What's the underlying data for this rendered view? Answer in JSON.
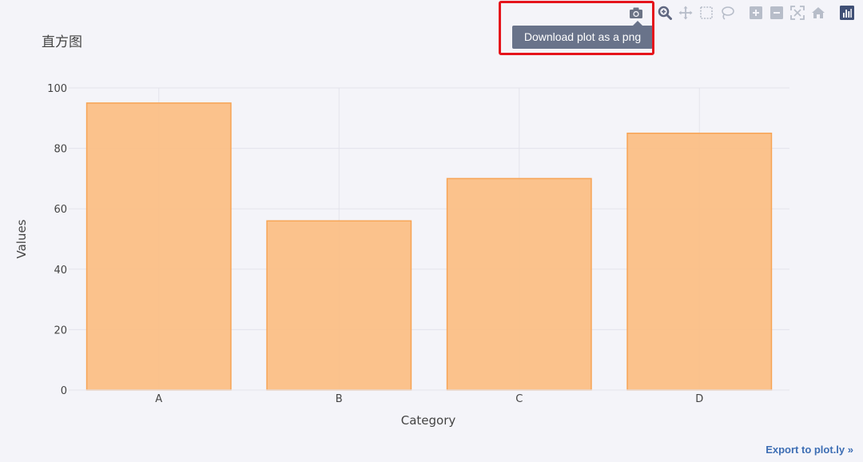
{
  "title": "直方图",
  "tooltip": "Download plot as a png",
  "export_link": "Export to plot.ly »",
  "modebar": {
    "buttons": [
      {
        "name": "camera-icon",
        "label": "Download plot as a png"
      },
      {
        "name": "zoom-icon",
        "label": "Zoom"
      },
      {
        "name": "pan-icon",
        "label": "Pan"
      },
      {
        "name": "box-select-icon",
        "label": "Box Select"
      },
      {
        "name": "lasso-select-icon",
        "label": "Lasso Select"
      },
      {
        "name": "zoom-in-icon",
        "label": "Zoom in"
      },
      {
        "name": "zoom-out-icon",
        "label": "Zoom out"
      },
      {
        "name": "autoscale-icon",
        "label": "Autoscale"
      },
      {
        "name": "reset-axes-icon",
        "label": "Reset axes"
      },
      {
        "name": "plotly-logo-icon",
        "label": "Produced with Plotly"
      }
    ],
    "icon_color": "#b7bdc9",
    "active_icon_color": "#6b7385",
    "logo_color": "#3f4f75"
  },
  "chart_data": {
    "type": "bar",
    "categories": [
      "A",
      "B",
      "C",
      "D"
    ],
    "values": [
      95,
      56,
      70,
      85
    ],
    "xlabel": "Category",
    "ylabel": "Values",
    "ylim": [
      0,
      100
    ],
    "yticks": [
      0,
      20,
      40,
      60,
      80,
      100
    ],
    "grid": true,
    "bar_color": "#fbbf86",
    "bar_edge_color": "#f7a455",
    "background": "#f4f4f9"
  }
}
